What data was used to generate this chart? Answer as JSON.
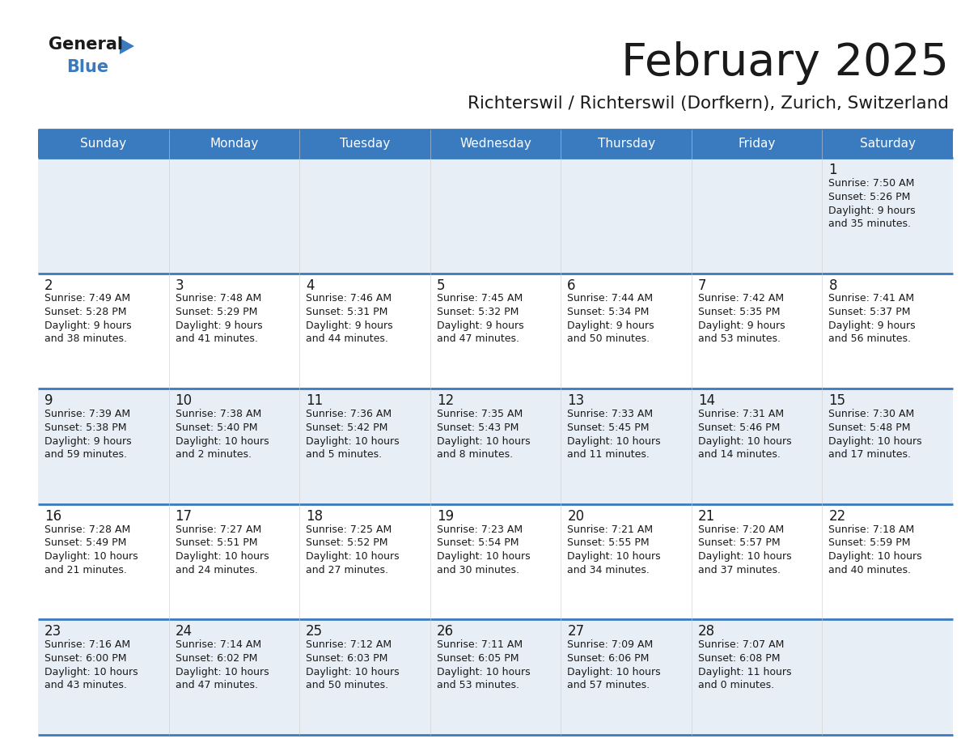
{
  "title": "February 2025",
  "subtitle": "Richterswil / Richterswil (Dorfkern), Zurich, Switzerland",
  "header_color": "#3a7abf",
  "header_text_color": "#ffffff",
  "row0_bg": "#e8eef5",
  "row1_bg": "#ffffff",
  "border_color": "#3a7abf",
  "text_color": "#1a1a1a",
  "day_headers": [
    "Sunday",
    "Monday",
    "Tuesday",
    "Wednesday",
    "Thursday",
    "Friday",
    "Saturday"
  ],
  "days_data": [
    {
      "day": 1,
      "col": 6,
      "row": 0,
      "sunrise": "7:50 AM",
      "sunset": "5:26 PM",
      "daylight": "9 hours and 35 minutes"
    },
    {
      "day": 2,
      "col": 0,
      "row": 1,
      "sunrise": "7:49 AM",
      "sunset": "5:28 PM",
      "daylight": "9 hours and 38 minutes"
    },
    {
      "day": 3,
      "col": 1,
      "row": 1,
      "sunrise": "7:48 AM",
      "sunset": "5:29 PM",
      "daylight": "9 hours and 41 minutes"
    },
    {
      "day": 4,
      "col": 2,
      "row": 1,
      "sunrise": "7:46 AM",
      "sunset": "5:31 PM",
      "daylight": "9 hours and 44 minutes"
    },
    {
      "day": 5,
      "col": 3,
      "row": 1,
      "sunrise": "7:45 AM",
      "sunset": "5:32 PM",
      "daylight": "9 hours and 47 minutes"
    },
    {
      "day": 6,
      "col": 4,
      "row": 1,
      "sunrise": "7:44 AM",
      "sunset": "5:34 PM",
      "daylight": "9 hours and 50 minutes"
    },
    {
      "day": 7,
      "col": 5,
      "row": 1,
      "sunrise": "7:42 AM",
      "sunset": "5:35 PM",
      "daylight": "9 hours and 53 minutes"
    },
    {
      "day": 8,
      "col": 6,
      "row": 1,
      "sunrise": "7:41 AM",
      "sunset": "5:37 PM",
      "daylight": "9 hours and 56 minutes"
    },
    {
      "day": 9,
      "col": 0,
      "row": 2,
      "sunrise": "7:39 AM",
      "sunset": "5:38 PM",
      "daylight": "9 hours and 59 minutes"
    },
    {
      "day": 10,
      "col": 1,
      "row": 2,
      "sunrise": "7:38 AM",
      "sunset": "5:40 PM",
      "daylight": "10 hours and 2 minutes"
    },
    {
      "day": 11,
      "col": 2,
      "row": 2,
      "sunrise": "7:36 AM",
      "sunset": "5:42 PM",
      "daylight": "10 hours and 5 minutes"
    },
    {
      "day": 12,
      "col": 3,
      "row": 2,
      "sunrise": "7:35 AM",
      "sunset": "5:43 PM",
      "daylight": "10 hours and 8 minutes"
    },
    {
      "day": 13,
      "col": 4,
      "row": 2,
      "sunrise": "7:33 AM",
      "sunset": "5:45 PM",
      "daylight": "10 hours and 11 minutes"
    },
    {
      "day": 14,
      "col": 5,
      "row": 2,
      "sunrise": "7:31 AM",
      "sunset": "5:46 PM",
      "daylight": "10 hours and 14 minutes"
    },
    {
      "day": 15,
      "col": 6,
      "row": 2,
      "sunrise": "7:30 AM",
      "sunset": "5:48 PM",
      "daylight": "10 hours and 17 minutes"
    },
    {
      "day": 16,
      "col": 0,
      "row": 3,
      "sunrise": "7:28 AM",
      "sunset": "5:49 PM",
      "daylight": "10 hours and 21 minutes"
    },
    {
      "day": 17,
      "col": 1,
      "row": 3,
      "sunrise": "7:27 AM",
      "sunset": "5:51 PM",
      "daylight": "10 hours and 24 minutes"
    },
    {
      "day": 18,
      "col": 2,
      "row": 3,
      "sunrise": "7:25 AM",
      "sunset": "5:52 PM",
      "daylight": "10 hours and 27 minutes"
    },
    {
      "day": 19,
      "col": 3,
      "row": 3,
      "sunrise": "7:23 AM",
      "sunset": "5:54 PM",
      "daylight": "10 hours and 30 minutes"
    },
    {
      "day": 20,
      "col": 4,
      "row": 3,
      "sunrise": "7:21 AM",
      "sunset": "5:55 PM",
      "daylight": "10 hours and 34 minutes"
    },
    {
      "day": 21,
      "col": 5,
      "row": 3,
      "sunrise": "7:20 AM",
      "sunset": "5:57 PM",
      "daylight": "10 hours and 37 minutes"
    },
    {
      "day": 22,
      "col": 6,
      "row": 3,
      "sunrise": "7:18 AM",
      "sunset": "5:59 PM",
      "daylight": "10 hours and 40 minutes"
    },
    {
      "day": 23,
      "col": 0,
      "row": 4,
      "sunrise": "7:16 AM",
      "sunset": "6:00 PM",
      "daylight": "10 hours and 43 minutes"
    },
    {
      "day": 24,
      "col": 1,
      "row": 4,
      "sunrise": "7:14 AM",
      "sunset": "6:02 PM",
      "daylight": "10 hours and 47 minutes"
    },
    {
      "day": 25,
      "col": 2,
      "row": 4,
      "sunrise": "7:12 AM",
      "sunset": "6:03 PM",
      "daylight": "10 hours and 50 minutes"
    },
    {
      "day": 26,
      "col": 3,
      "row": 4,
      "sunrise": "7:11 AM",
      "sunset": "6:05 PM",
      "daylight": "10 hours and 53 minutes"
    },
    {
      "day": 27,
      "col": 4,
      "row": 4,
      "sunrise": "7:09 AM",
      "sunset": "6:06 PM",
      "daylight": "10 hours and 57 minutes"
    },
    {
      "day": 28,
      "col": 5,
      "row": 4,
      "sunrise": "7:07 AM",
      "sunset": "6:08 PM",
      "daylight": "11 hours and 0 minutes"
    }
  ],
  "num_rows": 5,
  "num_cols": 7,
  "logo_general_color": "#1a1a1a",
  "logo_blue_color": "#3a7abf",
  "logo_triangle_color": "#3a7abf"
}
